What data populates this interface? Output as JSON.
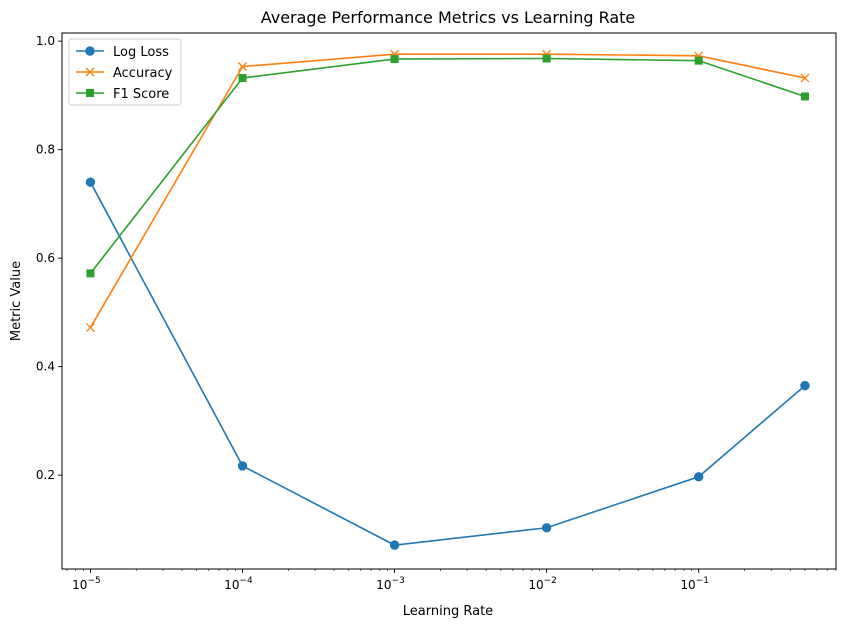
{
  "chart_data": {
    "type": "line",
    "title": "Average Performance Metrics vs Learning Rate",
    "xlabel": "Learning Rate",
    "ylabel": "Metric Value",
    "x_scale": "log",
    "x": [
      1e-05,
      0.0001,
      0.001,
      0.01,
      0.1,
      0.5
    ],
    "xlim": [
      6.5e-06,
      0.8
    ],
    "ylim": [
      0.027,
      1.015
    ],
    "x_ticks": [
      {
        "value": 1e-05,
        "base": "10",
        "exp": "−5"
      },
      {
        "value": 0.0001,
        "base": "10",
        "exp": "−4"
      },
      {
        "value": 0.001,
        "base": "10",
        "exp": "−3"
      },
      {
        "value": 0.01,
        "base": "10",
        "exp": "−2"
      },
      {
        "value": 0.1,
        "base": "10",
        "exp": "−1"
      }
    ],
    "y_ticks": [
      "0.2",
      "0.4",
      "0.6",
      "0.8",
      "1.0"
    ],
    "grid": false,
    "legend_position": "top-left",
    "series": [
      {
        "name": "Log Loss",
        "color": "#1f77b4",
        "marker": "circle",
        "values": [
          0.74,
          0.217,
          0.071,
          0.103,
          0.197,
          0.365
        ]
      },
      {
        "name": "Accuracy",
        "color": "#ff7f0e",
        "marker": "x",
        "values": [
          0.472,
          0.953,
          0.976,
          0.976,
          0.973,
          0.932
        ]
      },
      {
        "name": "F1 Score",
        "color": "#2ca02c",
        "marker": "square",
        "values": [
          0.572,
          0.932,
          0.967,
          0.968,
          0.964,
          0.898
        ]
      }
    ]
  }
}
